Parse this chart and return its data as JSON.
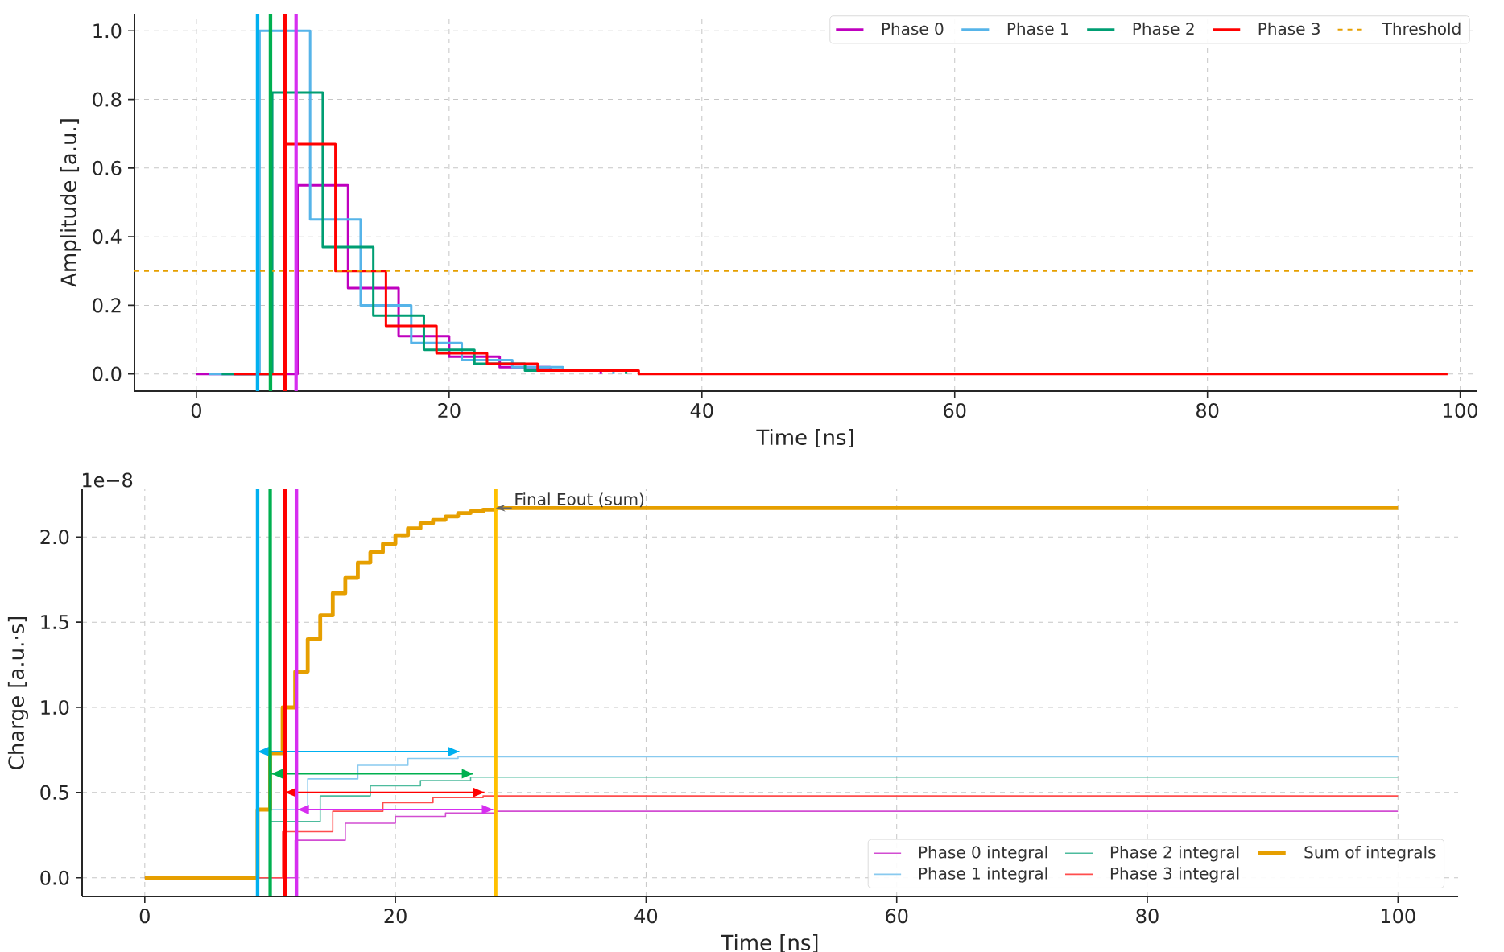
{
  "chart_data": [
    {
      "type": "step",
      "xlabel": "Time [ns]",
      "ylabel": "Amplitude [a.u.]",
      "xlim": [
        -4.9,
        101.3
      ],
      "ylim": [
        -0.05,
        1.05
      ],
      "xticks": [
        0,
        20,
        40,
        60,
        80,
        100
      ],
      "yticks": [
        {
          "value": 0,
          "label": "0.0"
        },
        {
          "value": 0.2,
          "label": "0.2"
        },
        {
          "value": 0.4,
          "label": "0.4"
        },
        {
          "value": 0.6,
          "label": "0.6"
        },
        {
          "value": 0.8,
          "label": "0.8"
        },
        {
          "value": 1.0,
          "label": "1.0"
        }
      ],
      "grid": true,
      "legend": "top right",
      "series": [
        {
          "name": "Phase 0",
          "color": "#bf00bf",
          "x": [
            0,
            8,
            12,
            16,
            20,
            24,
            28,
            32
          ],
          "values": [
            0,
            0.55,
            0.25,
            0.11,
            0.05,
            0.02,
            0.01,
            0
          ]
        },
        {
          "name": "Phase 1",
          "color": "#56b4e9",
          "x": [
            1,
            5,
            9,
            13,
            17,
            21,
            25,
            29,
            33
          ],
          "values": [
            0,
            1.0,
            0.45,
            0.2,
            0.09,
            0.04,
            0.02,
            0.01,
            0
          ]
        },
        {
          "name": "Phase 2",
          "color": "#009e73",
          "x": [
            2,
            6,
            10,
            14,
            18,
            22,
            26,
            34
          ],
          "values": [
            0,
            0.82,
            0.37,
            0.17,
            0.07,
            0.03,
            0.01,
            0
          ]
        },
        {
          "name": "Phase 3",
          "color": "#ff0000",
          "x": [
            3,
            7,
            11,
            15,
            19,
            23,
            27,
            31,
            35,
            39,
            43,
            47,
            51,
            55,
            59,
            63,
            67,
            71,
            75,
            79,
            83,
            87,
            91,
            95,
            99
          ],
          "values": [
            0,
            0.67,
            0.3,
            0.14,
            0.06,
            0.03,
            0.01,
            0.01,
            0,
            0,
            0,
            0,
            0,
            0,
            0,
            0,
            0,
            0,
            0,
            0,
            0,
            0,
            0,
            0,
            0
          ]
        }
      ],
      "ref_lines": [
        {
          "axis": "y",
          "value": 0.3,
          "label": "Threshold",
          "color": "#e69f00",
          "line_style": "dashed"
        },
        {
          "axis": "x",
          "value": 4.84,
          "color": "#00b0f0"
        },
        {
          "axis": "x",
          "value": 5.86,
          "color": "#00b050"
        },
        {
          "axis": "x",
          "value": 7.0,
          "color": "#ff0000"
        },
        {
          "axis": "x",
          "value": 7.88,
          "color": "#d62ef0"
        }
      ]
    },
    {
      "type": "step",
      "xlabel": "Time [ns]",
      "ylabel": "Charge [a.u.·s]",
      "xlim": [
        -5.0,
        104.8
      ],
      "ylim": [
        -0.11,
        2.28
      ],
      "xticks": [
        0,
        20,
        40,
        60,
        80,
        100
      ],
      "yticks": [
        {
          "value": 0,
          "label": "0.0"
        },
        {
          "value": 0.5,
          "label": "0.5"
        },
        {
          "value": 1.0,
          "label": "1.0"
        },
        {
          "value": 1.5,
          "label": "1.5"
        },
        {
          "value": 2.0,
          "label": "2.0"
        }
      ],
      "grid": true,
      "legend": "bottom right",
      "series": [
        {
          "name": "Phase 0 integral",
          "color": "#d24dd2",
          "x": [
            0,
            12,
            16,
            20,
            24,
            28,
            100
          ],
          "values": [
            0,
            0.22,
            0.32,
            0.36,
            0.38,
            0.39,
            0.39
          ]
        },
        {
          "name": "Phase 1 integral",
          "color": "#89caef",
          "x": [
            0,
            9,
            13,
            17,
            21,
            25,
            100
          ],
          "values": [
            0,
            0.4,
            0.58,
            0.66,
            0.7,
            0.71,
            0.71
          ]
        },
        {
          "name": "Phase 2 integral",
          "color": "#4dbb9d",
          "x": [
            0,
            10,
            14,
            18,
            22,
            26,
            100
          ],
          "values": [
            0,
            0.33,
            0.48,
            0.54,
            0.57,
            0.59,
            0.59
          ]
        },
        {
          "name": "Phase 3 integral",
          "color": "#ff4d4d",
          "x": [
            0,
            11,
            15,
            19,
            23,
            27,
            100
          ],
          "values": [
            0,
            0.27,
            0.39,
            0.44,
            0.47,
            0.48,
            0.48
          ]
        },
        {
          "name": "Sum of integrals",
          "color": "#e69f00",
          "x": [
            0,
            9,
            10,
            11,
            12,
            13,
            14,
            15,
            16,
            17,
            18,
            19,
            20,
            21,
            22,
            23,
            24,
            25,
            26,
            27,
            28,
            100
          ],
          "values": [
            0,
            0.4,
            0.73,
            1.0,
            1.21,
            1.4,
            1.54,
            1.67,
            1.76,
            1.85,
            1.91,
            1.96,
            2.01,
            2.05,
            2.08,
            2.1,
            2.12,
            2.14,
            2.15,
            2.16,
            2.17,
            2.17
          ]
        },
        {
          "type": "line",
          "color": "#00b0f0",
          "x": [
            9.0,
            25.1
          ],
          "values": [
            0.74,
            0.74
          ]
        },
        {
          "type": "line",
          "color": "#00b050",
          "x": [
            10.1,
            26.2
          ],
          "values": [
            0.61,
            0.61
          ]
        },
        {
          "type": "line",
          "color": "#ff0000",
          "x": [
            11.2,
            27.1
          ],
          "values": [
            0.5,
            0.5
          ]
        },
        {
          "type": "line",
          "color": "#d62ef0",
          "x": [
            12.2,
            27.8
          ],
          "values": [
            0.4,
            0.4
          ]
        }
      ],
      "ref_lines": [
        {
          "axis": "x",
          "value": 9.0,
          "color": "#00b0f0"
        },
        {
          "axis": "x",
          "value": 10.0,
          "color": "#00b050"
        },
        {
          "axis": "x",
          "value": 11.2,
          "color": "#ff0000"
        },
        {
          "axis": "x",
          "value": 12.1,
          "color": "#d62ef0"
        },
        {
          "axis": "x",
          "value": 28,
          "color": "#ffc000"
        }
      ],
      "annotations": [
        {
          "text": "Final Eout (sum)",
          "x": 28,
          "y": 2.17
        },
        "1e−8"
      ]
    }
  ]
}
